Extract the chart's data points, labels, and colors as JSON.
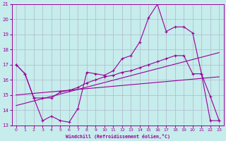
{
  "xlabel": "Windchill (Refroidissement éolien,°C)",
  "xlim": [
    -0.5,
    23.5
  ],
  "ylim": [
    13,
    21
  ],
  "xticks": [
    0,
    1,
    2,
    3,
    4,
    5,
    6,
    7,
    8,
    9,
    10,
    11,
    12,
    13,
    14,
    15,
    16,
    17,
    18,
    19,
    20,
    21,
    22,
    23
  ],
  "yticks": [
    13,
    14,
    15,
    16,
    17,
    18,
    19,
    20,
    21
  ],
  "bg_color": "#c6ecec",
  "grid_color": "#b0b8cc",
  "line_color": "#990099",
  "curve1_x": [
    0,
    1,
    2,
    3,
    4,
    5,
    6,
    7,
    8,
    9,
    10,
    11,
    12,
    13,
    14,
    15,
    16,
    17,
    18,
    19,
    20,
    21,
    22,
    23
  ],
  "curve1_y": [
    17.0,
    16.4,
    14.8,
    13.3,
    13.6,
    13.3,
    13.2,
    14.1,
    16.5,
    16.4,
    16.3,
    16.6,
    17.4,
    17.6,
    18.5,
    20.1,
    21.0,
    19.2,
    19.5,
    19.5,
    19.1,
    16.4,
    14.9,
    13.3
  ],
  "curve2_x": [
    0,
    1,
    2,
    3,
    4,
    5,
    6,
    7,
    8,
    9,
    10,
    11,
    12,
    13,
    14,
    15,
    16,
    17,
    18,
    19,
    20,
    21,
    22,
    23
  ],
  "curve2_y": [
    17.0,
    16.4,
    14.8,
    14.8,
    14.8,
    15.2,
    15.3,
    15.5,
    15.8,
    16.0,
    16.2,
    16.3,
    16.5,
    16.6,
    16.8,
    17.0,
    17.2,
    17.4,
    17.6,
    17.6,
    16.4,
    16.4,
    13.3,
    13.3
  ],
  "line3_x": [
    0,
    23
  ],
  "line3_y": [
    14.3,
    17.8
  ],
  "line4_x": [
    0,
    23
  ],
  "line4_y": [
    15.0,
    16.2
  ]
}
